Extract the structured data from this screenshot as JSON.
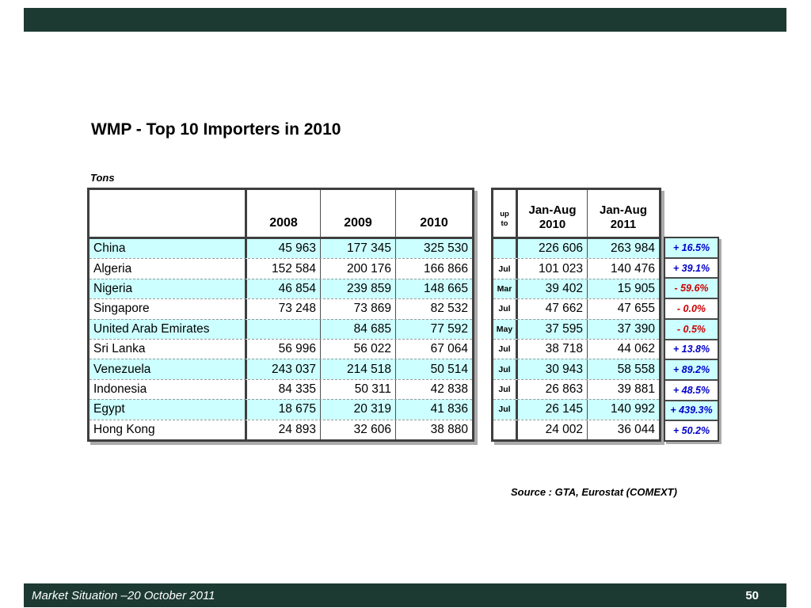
{
  "slide": {
    "title": "WMP - Top 10 Importers in 2010",
    "units_label": "Tons",
    "source_note": "Source : GTA, Eurostat (COMEXT)",
    "footer_text": "Market Situation –20 October 2011",
    "page_number": "50"
  },
  "colors": {
    "template_bar": "#1d3a32",
    "row_highlight": "#ccffff",
    "positive_change": "#0000cc",
    "negative_change": "#cc0000"
  },
  "table": {
    "header": {
      "year_2008": "2008",
      "year_2009": "2009",
      "year_2010": "2010",
      "up_to_line1": "up",
      "up_to_line2": "to",
      "jan_aug_2010_line1": "Jan-Aug",
      "jan_aug_2010_line2": "2010",
      "jan_aug_2011_line1": "Jan-Aug",
      "jan_aug_2011_line2": "2011"
    },
    "rows": [
      {
        "country": "China",
        "y2008": "45 963",
        "y2009": "177 345",
        "y2010": "325 530",
        "up_to": "",
        "jan_aug_2010": "226 606",
        "jan_aug_2011": "263 984",
        "change": "+ 16.5%",
        "trend": "pos",
        "highlight": true
      },
      {
        "country": "Algeria",
        "y2008": "152 584",
        "y2009": "200 176",
        "y2010": "166 866",
        "up_to": "Jul",
        "jan_aug_2010": "101 023",
        "jan_aug_2011": "140 476",
        "change": "+ 39.1%",
        "trend": "pos",
        "highlight": false
      },
      {
        "country": "Nigeria",
        "y2008": "46 854",
        "y2009": "239 859",
        "y2010": "148 665",
        "up_to": "Mar",
        "jan_aug_2010": "39 402",
        "jan_aug_2011": "15 905",
        "change": "- 59.6%",
        "trend": "neg",
        "highlight": true
      },
      {
        "country": "Singapore",
        "y2008": "73 248",
        "y2009": "73 869",
        "y2010": "82 532",
        "up_to": "Jul",
        "jan_aug_2010": "47 662",
        "jan_aug_2011": "47 655",
        "change": "- 0.0%",
        "trend": "neg",
        "highlight": false
      },
      {
        "country": "United Arab Emirates",
        "y2008": "",
        "y2009": "84 685",
        "y2010": "77 592",
        "up_to": "May",
        "jan_aug_2010": "37 595",
        "jan_aug_2011": "37 390",
        "change": "- 0.5%",
        "trend": "neg",
        "highlight": true
      },
      {
        "country": "Sri Lanka",
        "y2008": "56 996",
        "y2009": "56 022",
        "y2010": "67 064",
        "up_to": "Jul",
        "jan_aug_2010": "38 718",
        "jan_aug_2011": "44 062",
        "change": "+ 13.8%",
        "trend": "pos",
        "highlight": false
      },
      {
        "country": "Venezuela",
        "y2008": "243 037",
        "y2009": "214 518",
        "y2010": "50 514",
        "up_to": "Jul",
        "jan_aug_2010": "30 943",
        "jan_aug_2011": "58 558",
        "change": "+ 89.2%",
        "trend": "pos",
        "highlight": true
      },
      {
        "country": "Indonesia",
        "y2008": "84 335",
        "y2009": "50 311",
        "y2010": "42 838",
        "up_to": "Jul",
        "jan_aug_2010": "26 863",
        "jan_aug_2011": "39 881",
        "change": "+ 48.5%",
        "trend": "pos",
        "highlight": false
      },
      {
        "country": "Egypt",
        "y2008": "18 675",
        "y2009": "20 319",
        "y2010": "41 836",
        "up_to": "Jul",
        "jan_aug_2010": "26 145",
        "jan_aug_2011": "140 992",
        "change": "+ 439.3%",
        "trend": "pos",
        "highlight": true
      },
      {
        "country": "Hong Kong",
        "y2008": "24 893",
        "y2009": "32 606",
        "y2010": "38 880",
        "up_to": "",
        "jan_aug_2010": "24 002",
        "jan_aug_2011": "36 044",
        "change": "+ 50.2%",
        "trend": "pos",
        "highlight": false
      }
    ]
  }
}
